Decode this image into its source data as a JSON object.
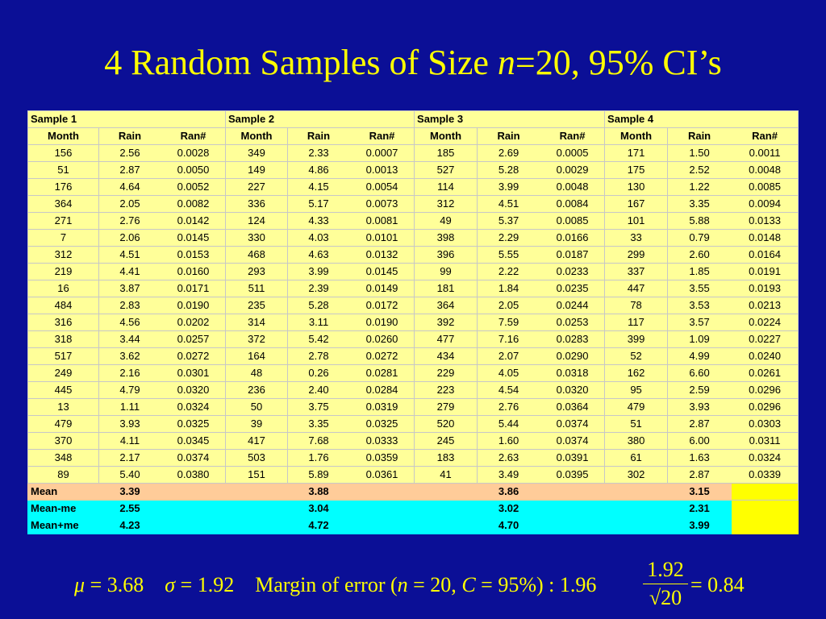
{
  "title": {
    "pre": "4 Random Samples of Size ",
    "var": "n",
    "post": "=20, 95% CI’s"
  },
  "table": {
    "sample_headers": [
      "Sample 1",
      "Sample 2",
      "Sample 3",
      "Sample 4"
    ],
    "column_headers": [
      "Month",
      "Rain",
      "Ran#"
    ],
    "rows": [
      [
        "156",
        "2.56",
        "0.0028",
        "349",
        "2.33",
        "0.0007",
        "185",
        "2.69",
        "0.0005",
        "171",
        "1.50",
        "0.0011"
      ],
      [
        "51",
        "2.87",
        "0.0050",
        "149",
        "4.86",
        "0.0013",
        "527",
        "5.28",
        "0.0029",
        "175",
        "2.52",
        "0.0048"
      ],
      [
        "176",
        "4.64",
        "0.0052",
        "227",
        "4.15",
        "0.0054",
        "114",
        "3.99",
        "0.0048",
        "130",
        "1.22",
        "0.0085"
      ],
      [
        "364",
        "2.05",
        "0.0082",
        "336",
        "5.17",
        "0.0073",
        "312",
        "4.51",
        "0.0084",
        "167",
        "3.35",
        "0.0094"
      ],
      [
        "271",
        "2.76",
        "0.0142",
        "124",
        "4.33",
        "0.0081",
        "49",
        "5.37",
        "0.0085",
        "101",
        "5.88",
        "0.0133"
      ],
      [
        "7",
        "2.06",
        "0.0145",
        "330",
        "4.03",
        "0.0101",
        "398",
        "2.29",
        "0.0166",
        "33",
        "0.79",
        "0.0148"
      ],
      [
        "312",
        "4.51",
        "0.0153",
        "468",
        "4.63",
        "0.0132",
        "396",
        "5.55",
        "0.0187",
        "299",
        "2.60",
        "0.0164"
      ],
      [
        "219",
        "4.41",
        "0.0160",
        "293",
        "3.99",
        "0.0145",
        "99",
        "2.22",
        "0.0233",
        "337",
        "1.85",
        "0.0191"
      ],
      [
        "16",
        "3.87",
        "0.0171",
        "511",
        "2.39",
        "0.0149",
        "181",
        "1.84",
        "0.0235",
        "447",
        "3.55",
        "0.0193"
      ],
      [
        "484",
        "2.83",
        "0.0190",
        "235",
        "5.28",
        "0.0172",
        "364",
        "2.05",
        "0.0244",
        "78",
        "3.53",
        "0.0213"
      ],
      [
        "316",
        "4.56",
        "0.0202",
        "314",
        "3.11",
        "0.0190",
        "392",
        "7.59",
        "0.0253",
        "117",
        "3.57",
        "0.0224"
      ],
      [
        "318",
        "3.44",
        "0.0257",
        "372",
        "5.42",
        "0.0260",
        "477",
        "7.16",
        "0.0283",
        "399",
        "1.09",
        "0.0227"
      ],
      [
        "517",
        "3.62",
        "0.0272",
        "164",
        "2.78",
        "0.0272",
        "434",
        "2.07",
        "0.0290",
        "52",
        "4.99",
        "0.0240"
      ],
      [
        "249",
        "2.16",
        "0.0301",
        "48",
        "0.26",
        "0.0281",
        "229",
        "4.05",
        "0.0318",
        "162",
        "6.60",
        "0.0261"
      ],
      [
        "445",
        "4.79",
        "0.0320",
        "236",
        "2.40",
        "0.0284",
        "223",
        "4.54",
        "0.0320",
        "95",
        "2.59",
        "0.0296"
      ],
      [
        "13",
        "1.11",
        "0.0324",
        "50",
        "3.75",
        "0.0319",
        "279",
        "2.76",
        "0.0364",
        "479",
        "3.93",
        "0.0296"
      ],
      [
        "479",
        "3.93",
        "0.0325",
        "39",
        "3.35",
        "0.0325",
        "520",
        "5.44",
        "0.0374",
        "51",
        "2.87",
        "0.0303"
      ],
      [
        "370",
        "4.11",
        "0.0345",
        "417",
        "7.68",
        "0.0333",
        "245",
        "1.60",
        "0.0374",
        "380",
        "6.00",
        "0.0311"
      ],
      [
        "348",
        "2.17",
        "0.0374",
        "503",
        "1.76",
        "0.0359",
        "183",
        "2.63",
        "0.0391",
        "61",
        "1.63",
        "0.0324"
      ],
      [
        "89",
        "5.40",
        "0.0380",
        "151",
        "5.89",
        "0.0361",
        "41",
        "3.49",
        "0.0395",
        "302",
        "2.87",
        "0.0339"
      ]
    ],
    "summary": [
      {
        "label": "Mean",
        "values": [
          "3.39",
          "3.88",
          "3.86",
          "3.15"
        ]
      },
      {
        "label": "Mean-me",
        "values": [
          "2.55",
          "3.04",
          "3.02",
          "2.31"
        ]
      },
      {
        "label": "Mean+me",
        "values": [
          "4.23",
          "4.72",
          "4.70",
          "3.99"
        ]
      }
    ]
  },
  "formula": {
    "mu_sym": "μ",
    "mu_val": " = 3.68",
    "sigma_sym": "σ",
    "sigma_val": " = 1.92",
    "moe_label": "Margin  of  error (",
    "n_sym": "n",
    "n_val": " = 20, ",
    "c_sym": "C",
    "c_val": " = 95%) : 1.96",
    "frac_num": "1.92",
    "frac_den": "√20",
    "result": " = 0.84"
  },
  "colors": {
    "background": "#0b0f96",
    "title": "#ffff00",
    "cell": "#ffff99",
    "mean_row": "#ffcc99",
    "me_rows": "#00ffff",
    "summary_filler": "#ffff00"
  }
}
